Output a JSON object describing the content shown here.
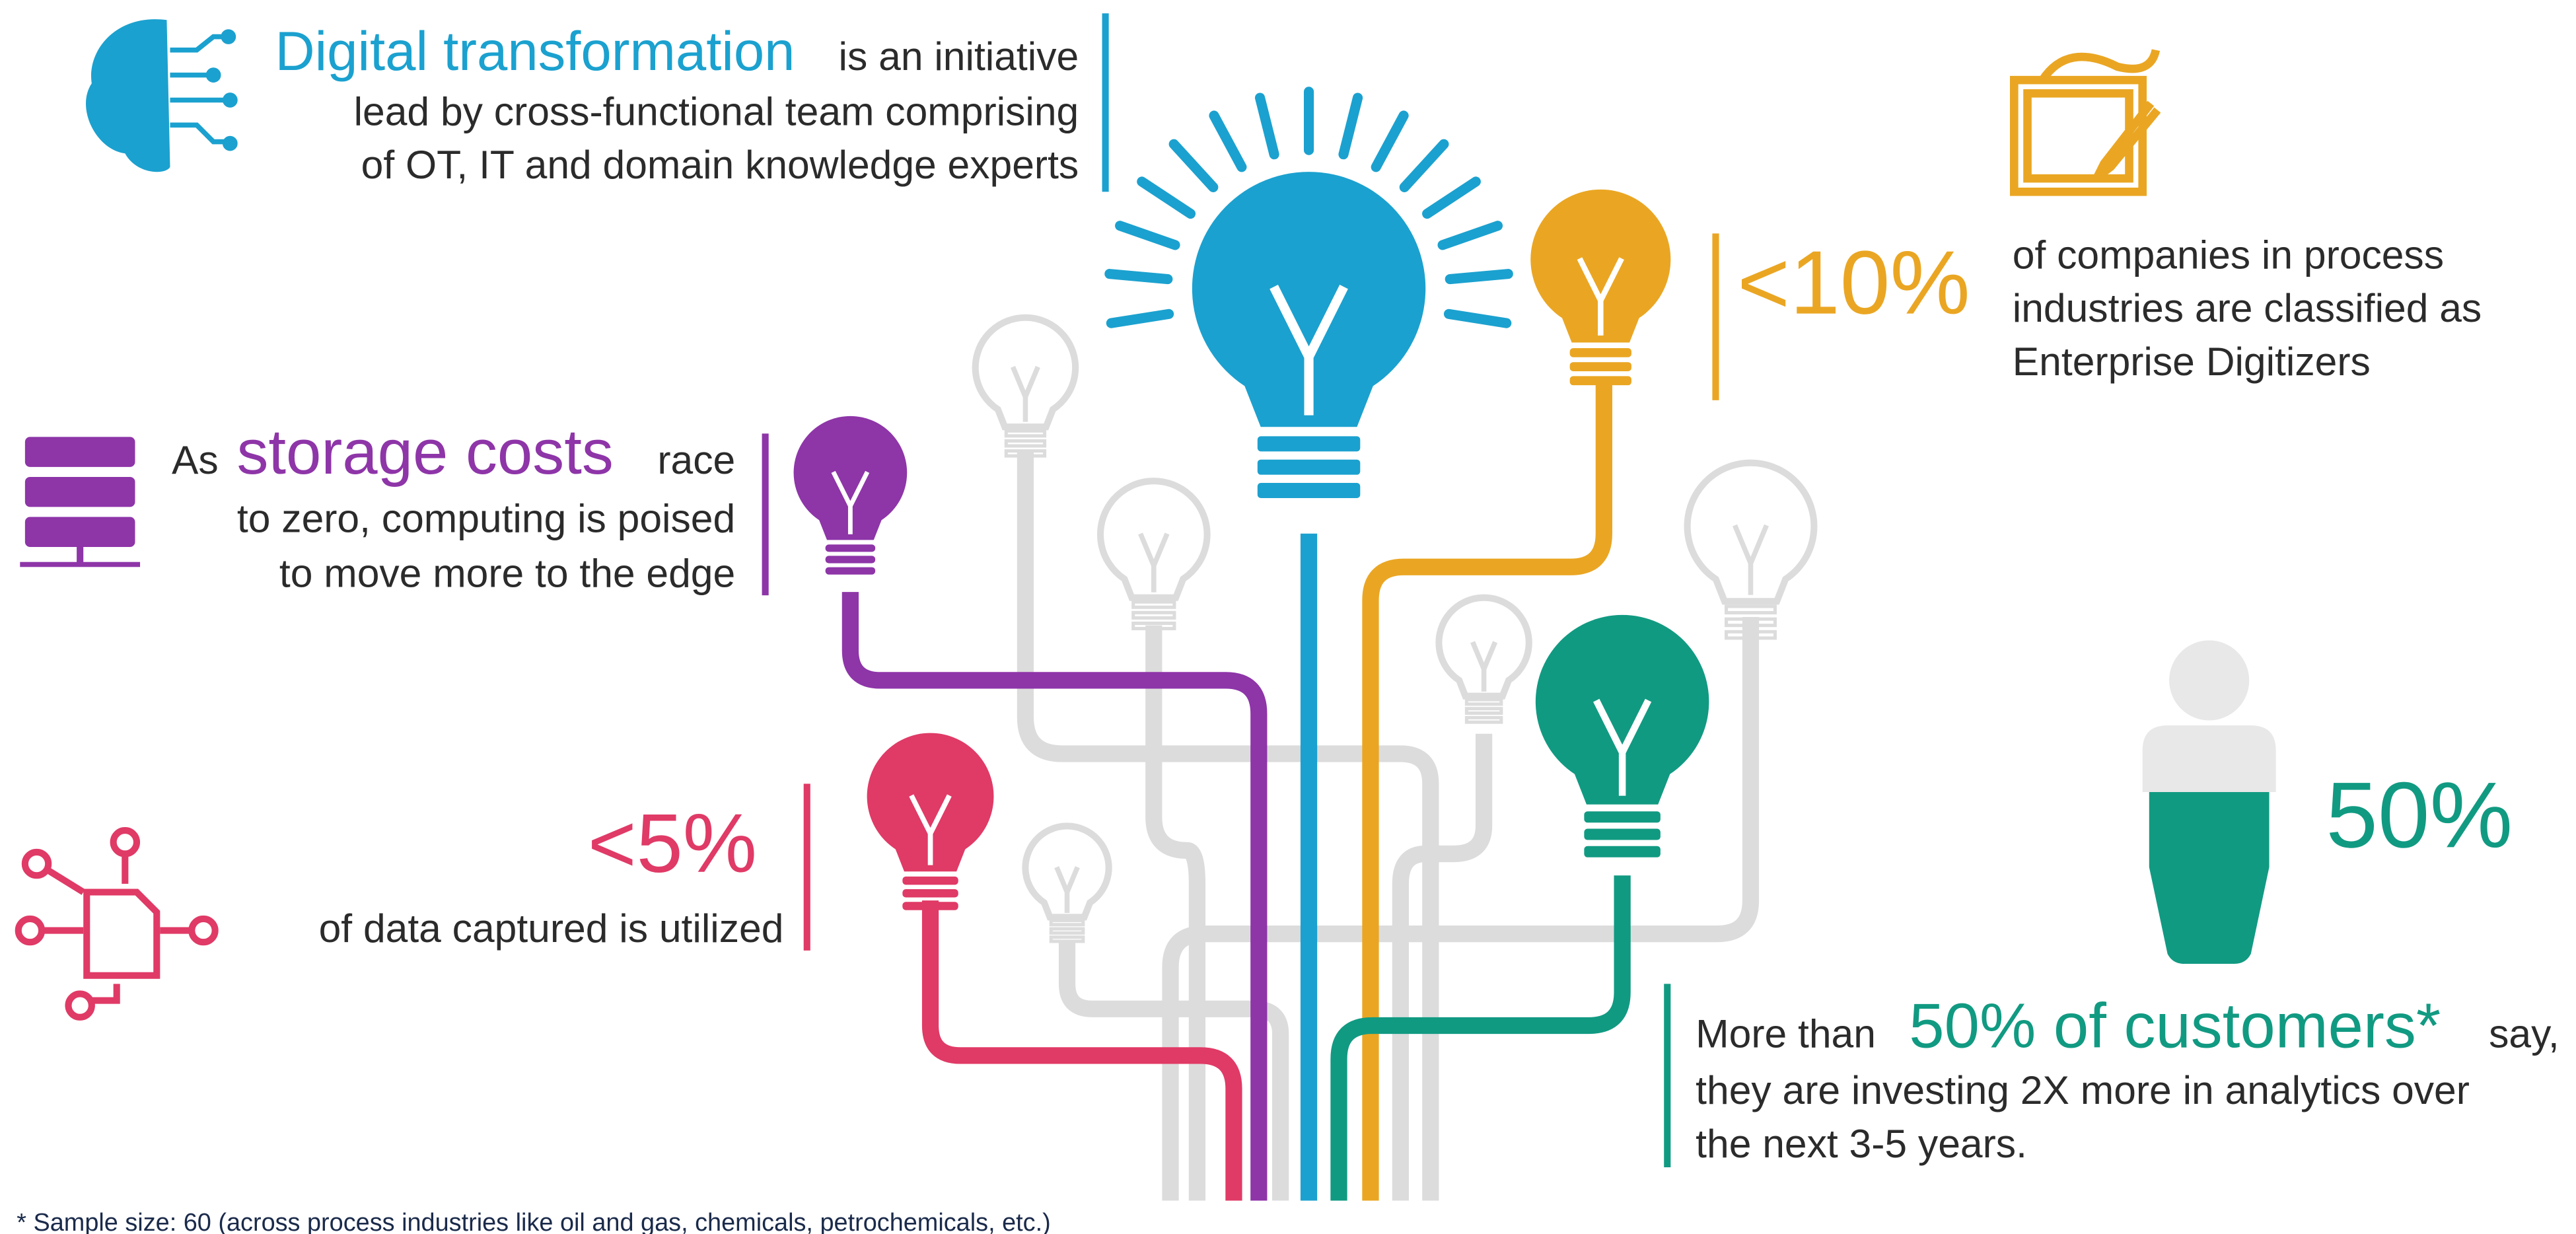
{
  "digital": {
    "highlight": "Digital transformation",
    "text": [
      "is an initiative",
      "lead by cross-functional team comprising",
      "of OT, IT and domain knowledge experts"
    ]
  },
  "storage": {
    "prefix": "As",
    "highlight": "storage costs",
    "text": [
      "race",
      "to zero, computing is poised",
      "to move more to the edge"
    ]
  },
  "data_use": {
    "stat": "<5%",
    "text": [
      "of data captured is utilized"
    ]
  },
  "enterprise": {
    "stat": "<10%",
    "text": [
      "of companies in process",
      "industries are classified as",
      "Enterprise Digitizers"
    ]
  },
  "customers": {
    "stat": "50%",
    "prefix": "More than",
    "highlight": "50% of customers*",
    "text": [
      "say,",
      "they are investing 2X more in analytics over",
      "the next 3-5 years."
    ]
  },
  "footnote": "* Sample size: 60 (across process industries like oil and gas, chemicals, petrochemicals, etc.)"
}
